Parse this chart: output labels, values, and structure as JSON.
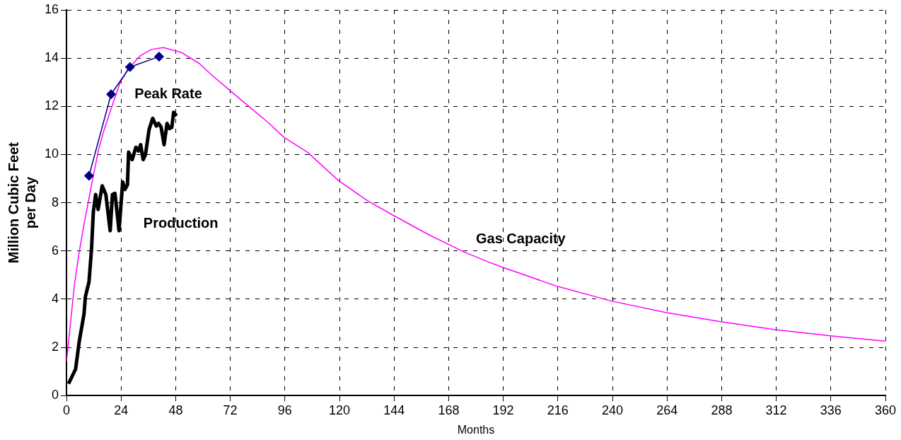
{
  "chart_data": {
    "type": "line",
    "xlabel": "Months",
    "ylabel": "Million Cubic Feet per Day",
    "xlim": [
      0,
      360
    ],
    "xticks": [
      0,
      24,
      48,
      72,
      96,
      120,
      144,
      168,
      192,
      216,
      240,
      264,
      288,
      312,
      336,
      360
    ],
    "ylim": [
      0,
      16
    ],
    "yticks": [
      0,
      2,
      4,
      6,
      8,
      10,
      12,
      14,
      16
    ],
    "grid": true,
    "legend": false,
    "series": [
      {
        "name": "Peak Rate",
        "color": "#000080",
        "marker": "diamond",
        "x": [
          9.9,
          19.6,
          27.9,
          40.7
        ],
        "values": [
          9.12,
          12.5,
          13.63,
          14.06
        ]
      },
      {
        "name": "Production",
        "color": "#000000",
        "marker": "none",
        "x": [
          0.9,
          4.0,
          5.6,
          7.7,
          8.3,
          9.9,
          11.0,
          11.8,
          12.8,
          13.9,
          15.7,
          17.3,
          19.2,
          20.2,
          21.3,
          23.1,
          24.7,
          25.7,
          26.8,
          27.3,
          28.9,
          30.5,
          31.6,
          32.6,
          33.7,
          34.7,
          36.3,
          37.9,
          39.5,
          40.5,
          41.6,
          42.9,
          44.2,
          45.3,
          46.3,
          47.1,
          48.4
        ],
        "values": [
          0.49,
          1.1,
          2.24,
          3.38,
          4.1,
          4.72,
          6.07,
          7.62,
          8.34,
          7.72,
          8.7,
          8.34,
          6.84,
          8.34,
          8.39,
          6.84,
          8.86,
          8.55,
          8.75,
          10.1,
          9.79,
          10.3,
          10.15,
          10.41,
          9.79,
          9.99,
          11.03,
          11.5,
          11.18,
          11.29,
          11.13,
          10.41,
          11.29,
          11.08,
          11.13,
          11.75,
          11.6
        ]
      },
      {
        "name": "Gas Capacity",
        "color": "#ff00ff",
        "marker": "none",
        "x": [
          0,
          1.95,
          3.5,
          5.6,
          7.7,
          10.4,
          12.0,
          14.1,
          16.2,
          19.4,
          23.6,
          26.8,
          32.2,
          37.3,
          42.6,
          50.6,
          58.5,
          63.8,
          72.2,
          80.6,
          89.1,
          95.5,
          106,
          119.7,
          132.4,
          144,
          158.9,
          174.7,
          185.3,
          192.1,
          215.8,
          239.6,
          263.4,
          287.1,
          310.9,
          335.8,
          360
        ],
        "values": [
          1.42,
          3.17,
          4.62,
          5.96,
          7.1,
          8.44,
          9.22,
          10.2,
          10.92,
          11.85,
          12.99,
          13.51,
          14.08,
          14.36,
          14.44,
          14.23,
          13.77,
          13.3,
          12.63,
          11.96,
          11.29,
          10.72,
          10.09,
          8.91,
          8.08,
          7.46,
          6.69,
          5.96,
          5.55,
          5.31,
          4.53,
          3.92,
          3.45,
          3.07,
          2.74,
          2.48,
          2.26
        ]
      }
    ]
  }
}
